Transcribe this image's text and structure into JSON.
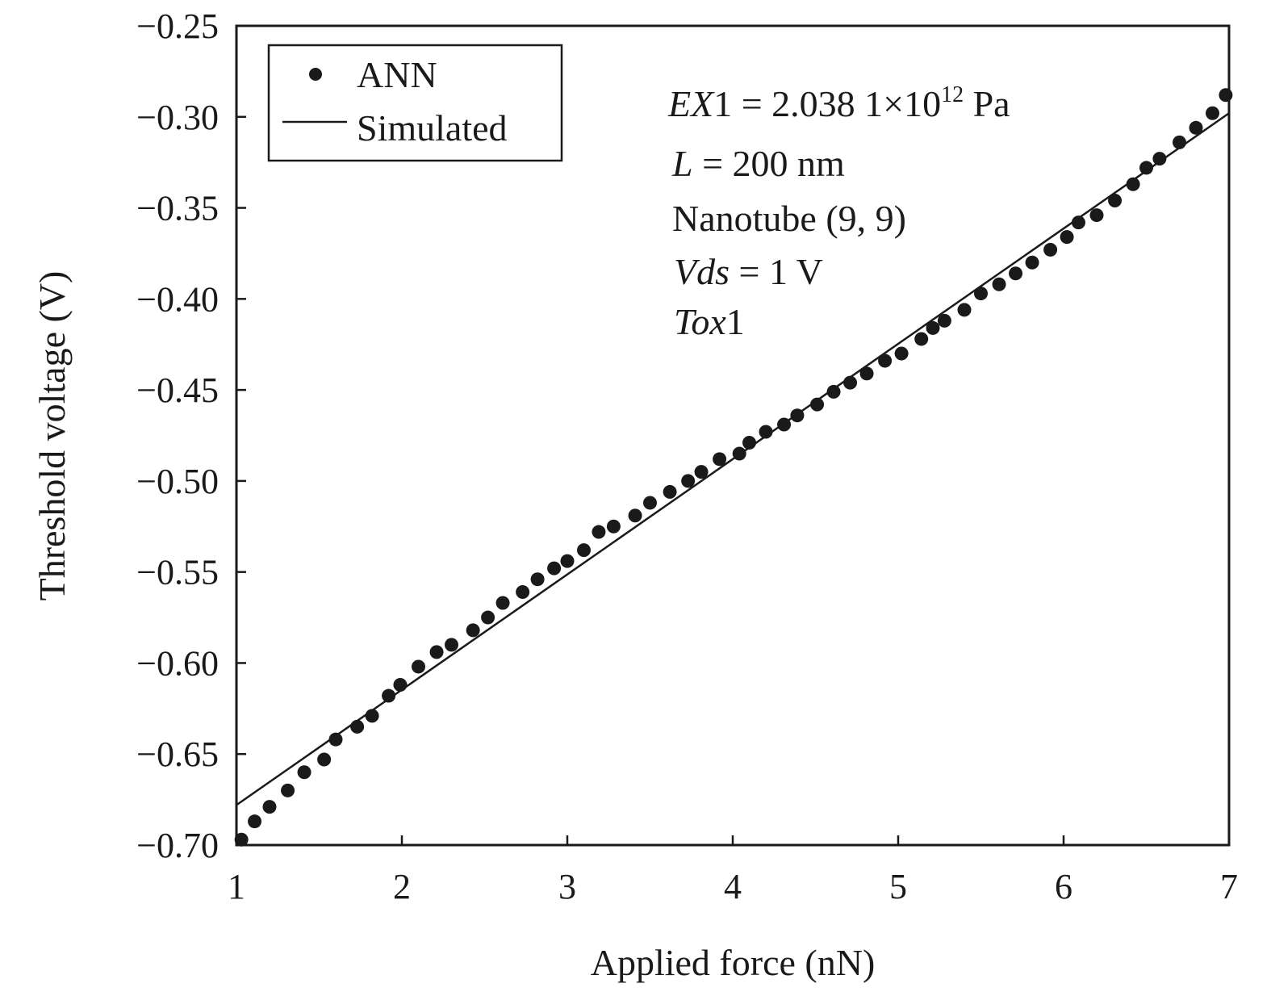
{
  "chart_data": {
    "type": "scatter",
    "xlabel": "Applied force (nN)",
    "ylabel": "Threshold voltage (V)",
    "xlim": [
      1,
      7
    ],
    "ylim": [
      -0.7,
      -0.25
    ],
    "x_ticks": [
      "1",
      "2",
      "3",
      "4",
      "5",
      "6",
      "7"
    ],
    "y_ticks": [
      "−0.25",
      "−0.30",
      "−0.35",
      "−0.40",
      "−0.45",
      "−0.50",
      "−0.55",
      "−0.60",
      "−0.65",
      "−0.70"
    ],
    "grid": false,
    "legend_position": "top-left",
    "series": [
      {
        "name": "ANN",
        "style": "dots",
        "points": [
          [
            1.03,
            -0.697
          ],
          [
            1.11,
            -0.687
          ],
          [
            1.2,
            -0.679
          ],
          [
            1.31,
            -0.67
          ],
          [
            1.41,
            -0.66
          ],
          [
            1.53,
            -0.653
          ],
          [
            1.6,
            -0.642
          ],
          [
            1.73,
            -0.635
          ],
          [
            1.82,
            -0.629
          ],
          [
            1.92,
            -0.618
          ],
          [
            1.99,
            -0.612
          ],
          [
            2.1,
            -0.602
          ],
          [
            2.21,
            -0.594
          ],
          [
            2.3,
            -0.59
          ],
          [
            2.43,
            -0.582
          ],
          [
            2.52,
            -0.575
          ],
          [
            2.61,
            -0.567
          ],
          [
            2.73,
            -0.561
          ],
          [
            2.82,
            -0.554
          ],
          [
            2.92,
            -0.548
          ],
          [
            3.0,
            -0.544
          ],
          [
            3.1,
            -0.538
          ],
          [
            3.19,
            -0.528
          ],
          [
            3.28,
            -0.525
          ],
          [
            3.41,
            -0.519
          ],
          [
            3.5,
            -0.512
          ],
          [
            3.62,
            -0.506
          ],
          [
            3.73,
            -0.5
          ],
          [
            3.81,
            -0.495
          ],
          [
            3.92,
            -0.488
          ],
          [
            4.04,
            -0.485
          ],
          [
            4.1,
            -0.479
          ],
          [
            4.2,
            -0.473
          ],
          [
            4.31,
            -0.469
          ],
          [
            4.39,
            -0.464
          ],
          [
            4.51,
            -0.458
          ],
          [
            4.61,
            -0.451
          ],
          [
            4.71,
            -0.446
          ],
          [
            4.81,
            -0.441
          ],
          [
            4.92,
            -0.434
          ],
          [
            5.02,
            -0.43
          ],
          [
            5.14,
            -0.422
          ],
          [
            5.21,
            -0.416
          ],
          [
            5.28,
            -0.412
          ],
          [
            5.4,
            -0.406
          ],
          [
            5.5,
            -0.397
          ],
          [
            5.61,
            -0.392
          ],
          [
            5.71,
            -0.386
          ],
          [
            5.81,
            -0.38
          ],
          [
            5.92,
            -0.373
          ],
          [
            6.02,
            -0.366
          ],
          [
            6.09,
            -0.358
          ],
          [
            6.2,
            -0.354
          ],
          [
            6.31,
            -0.346
          ],
          [
            6.42,
            -0.337
          ],
          [
            6.5,
            -0.328
          ],
          [
            6.58,
            -0.323
          ],
          [
            6.7,
            -0.314
          ],
          [
            6.8,
            -0.306
          ],
          [
            6.9,
            -0.298
          ],
          [
            6.98,
            -0.288
          ]
        ]
      },
      {
        "name": "Simulated",
        "style": "line",
        "points": [
          [
            1.0,
            -0.678
          ],
          [
            7.0,
            -0.298
          ]
        ]
      }
    ],
    "annotation": {
      "line1_italic": "EX",
      "line1_rest": "1 = 2.038 1×10",
      "line1_sup": "12",
      "line1_unit": " Pa",
      "line2_italic": "L",
      "line2_rest": " = 200 nm",
      "line3": "Nanotube (9, 9)",
      "line4_italic": "Vds",
      "line4_rest": " = 1 V",
      "line5_italic": "Tox",
      "line5_rest": "1"
    },
    "colors": {
      "ink": "#1a1a1a",
      "background": "#ffffff"
    }
  }
}
